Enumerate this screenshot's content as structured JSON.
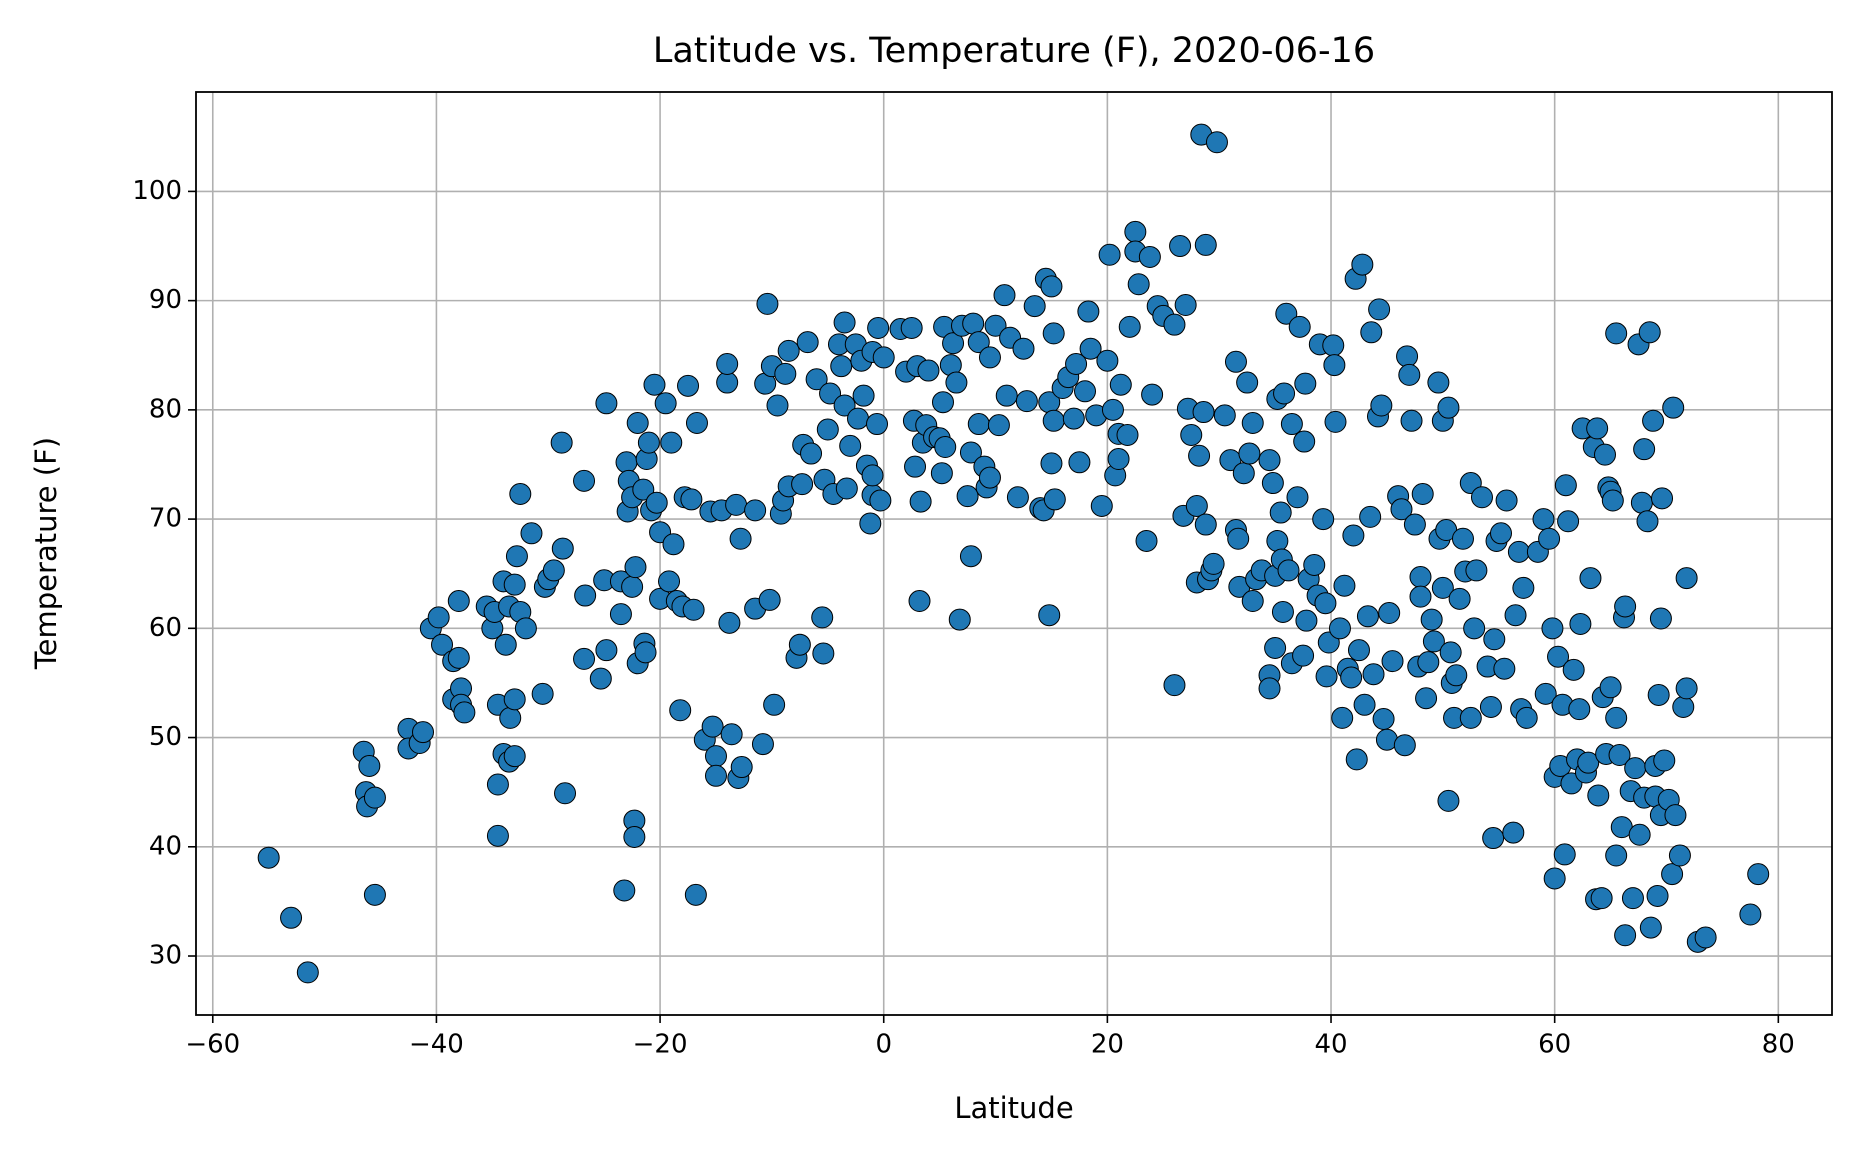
{
  "chart_data": {
    "type": "scatter",
    "title": "Latitude vs. Temperature (F), 2020-06-16",
    "x_label": "Latitude",
    "y_label": "Temperature (F)",
    "color": "#1f77b4",
    "edge_color": "#000000",
    "grid": true,
    "xlim": [
      -61.5,
      84.8
    ],
    "ylim": [
      24.6,
      109.1
    ],
    "xticks": [
      {
        "value": -60,
        "label": "−60"
      },
      {
        "value": -40,
        "label": "−40"
      },
      {
        "value": -20,
        "label": "−20"
      },
      0,
      20,
      40,
      60,
      80
    ],
    "yticks": [
      30,
      40,
      50,
      60,
      70,
      80,
      90,
      100
    ],
    "x": [
      -55,
      -53,
      -51.5,
      -46.5,
      -46.3,
      -46,
      -46.2,
      -45.5,
      -45.5,
      -42.5,
      -42.5,
      -41.5,
      -41.2,
      -40.5,
      -39.8,
      -39.5,
      -38.5,
      -38.5,
      -38,
      -38,
      -37.8,
      -37.8,
      -37.5,
      -35.5,
      -35,
      -34.8,
      -34.5,
      -34.5,
      -34.5,
      -34,
      -34,
      -33.8,
      -33.5,
      -33.5,
      -33.4,
      -33,
      -33,
      -33,
      -32.8,
      -32.5,
      -32.5,
      -32,
      -31.5,
      -30.5,
      -30.3,
      -30,
      -29.5,
      -28.8,
      -28.7,
      -28.5,
      -26.8,
      -26.8,
      -26.7,
      -25.3,
      -25,
      -24.8,
      -24.8,
      -23.5,
      -23.5,
      -23.2,
      -23,
      -22.9,
      -22.8,
      -22.5,
      -22.5,
      -22.3,
      -22.3,
      -22.2,
      -22,
      -22,
      -21.5,
      -21.4,
      -21.3,
      -21.2,
      -21,
      -20.8,
      -20.5,
      -20.3,
      -20,
      -20,
      -19.5,
      -19.2,
      -19,
      -18.8,
      -18.5,
      -18.2,
      -18,
      -17.8,
      -17.5,
      -17.2,
      -17,
      -16.8,
      -16.7,
      -16,
      -15.5,
      -15.3,
      -15,
      -15,
      -14.5,
      -14,
      -14,
      -13.8,
      -13.6,
      -13.2,
      -13,
      -12.8,
      -12.7,
      -11.5,
      -11.5,
      -10.8,
      -10.6,
      -10.4,
      -10.2,
      -10,
      -9.8,
      -9.5,
      -9.2,
      -9,
      -8.8,
      -8.5,
      -8.5,
      -7.8,
      -7.5,
      -7.3,
      -7.2,
      -6.8,
      -6.5,
      -6,
      -5.5,
      -5.4,
      -5.3,
      -5,
      -4.8,
      -4.5,
      -4,
      -3.8,
      -3.5,
      -3.5,
      -3.3,
      -3,
      -2.5,
      -2.3,
      -2,
      -1.8,
      -1.5,
      -1.2,
      -1,
      -1,
      -1,
      -0.6,
      -0.5,
      -0.3,
      0,
      1.5,
      2,
      2.5,
      2.7,
      2.8,
      3,
      3.2,
      3.3,
      3.5,
      3.8,
      4,
      4.5,
      5,
      5.2,
      5.3,
      5.4,
      5.5,
      6,
      6.2,
      6.5,
      6.8,
      7,
      7.5,
      7.8,
      7.8,
      8,
      8.5,
      8.5,
      9,
      9.2,
      9.5,
      9.5,
      10,
      10.3,
      10.8,
      11,
      11.3,
      12,
      12.5,
      12.8,
      13.5,
      14,
      14.3,
      14.5,
      14.8,
      14.8,
      15,
      15,
      15.2,
      15.2,
      15.3,
      16,
      16.5,
      17,
      17.2,
      17.5,
      18,
      18.3,
      18.5,
      19,
      19.5,
      20,
      20.2,
      20.5,
      20.7,
      21,
      21,
      21.2,
      21.8,
      22,
      22.5,
      22.5,
      22.8,
      23.5,
      23.8,
      24,
      24.5,
      25,
      26,
      26,
      26.5,
      26.8,
      27,
      27.2,
      27.5,
      28,
      28,
      28.2,
      28.4,
      28.6,
      28.8,
      28.8,
      29,
      29.3,
      29.5,
      29.8,
      30.5,
      31,
      31.5,
      31.5,
      31.7,
      31.8,
      32.2,
      32.5,
      32.7,
      33,
      33,
      33.3,
      33.8,
      34.5,
      34.5,
      34.5,
      34.8,
      35,
      35,
      35.2,
      35.2,
      35.5,
      35.6,
      35.7,
      35.8,
      36,
      36.2,
      36.5,
      36.5,
      37,
      37.2,
      37.5,
      37.6,
      37.7,
      37.8,
      38,
      38.5,
      38.8,
      39,
      39.3,
      39.5,
      39.6,
      39.8,
      40.2,
      40.3,
      40.4,
      40.8,
      41,
      41.2,
      41.5,
      41.8,
      42,
      42.2,
      42.3,
      42.5,
      42.8,
      43,
      43.3,
      43.5,
      43.6,
      43.8,
      44.2,
      44.3,
      44.5,
      44.7,
      45,
      45.2,
      45.5,
      46,
      46.3,
      46.6,
      46.8,
      47,
      47.2,
      47.5,
      47.8,
      48,
      48,
      48.2,
      48.5,
      48.7,
      49,
      49.2,
      49.6,
      49.7,
      50,
      50,
      50.3,
      50.5,
      50.5,
      50.7,
      50.8,
      51,
      51.2,
      51.5,
      51.8,
      52,
      52.5,
      52.5,
      52.8,
      53,
      53.5,
      54,
      54.3,
      54.5,
      54.6,
      54.8,
      55.2,
      55.5,
      55.7,
      56.3,
      56.5,
      56.8,
      57,
      57.2,
      57.5,
      58.5,
      59,
      59.2,
      59.5,
      59.8,
      60,
      60,
      60.3,
      60.5,
      60.7,
      60.9,
      61,
      61.2,
      61.5,
      61.7,
      62,
      62.2,
      62.3,
      62.5,
      62.8,
      63,
      63.2,
      63.5,
      63.7,
      63.8,
      63.9,
      64.2,
      64.3,
      64.5,
      64.6,
      64.8,
      65,
      65,
      65.2,
      65.5,
      65.5,
      65.5,
      65.8,
      66,
      66.2,
      66.3,
      66.3,
      66.8,
      67,
      67.2,
      67.5,
      67.6,
      67.8,
      68,
      68,
      68.3,
      68.5,
      68.6,
      68.8,
      69,
      69,
      69.2,
      69.3,
      69.5,
      69.5,
      69.6,
      69.8,
      70.2,
      70.5,
      70.6,
      70.8,
      71.2,
      71.5,
      71.8,
      71.8,
      72.8,
      73.5,
      77.5,
      78.2
    ],
    "values": [
      39,
      33.5,
      28.5,
      48.7,
      45,
      47.4,
      43.7,
      44.5,
      35.6,
      50.8,
      49,
      49.5,
      50.5,
      60,
      61,
      58.5,
      53.5,
      57,
      62.5,
      57.3,
      54.5,
      53,
      52.3,
      62,
      60,
      61.5,
      45.7,
      41,
      53,
      48.5,
      64.3,
      58.5,
      62,
      47.8,
      51.8,
      53.5,
      64,
      48.3,
      66.6,
      72.3,
      61.5,
      60,
      68.7,
      54,
      63.8,
      64.5,
      65.3,
      77,
      67.3,
      44.9,
      73.5,
      57.2,
      63,
      55.4,
      64.4,
      58,
      80.6,
      64.3,
      61.3,
      36,
      75.2,
      70.7,
      73.5,
      72,
      63.8,
      42.4,
      40.9,
      65.6,
      56.8,
      78.8,
      72.7,
      58.6,
      57.8,
      75.5,
      77,
      70.8,
      82.3,
      71.5,
      68.8,
      62.7,
      80.6,
      64.3,
      77,
      67.7,
      62.5,
      52.5,
      62,
      72,
      82.2,
      71.8,
      61.7,
      35.6,
      78.8,
      49.8,
      70.7,
      51,
      48.3,
      46.5,
      70.8,
      82.5,
      84.2,
      60.5,
      50.3,
      71.3,
      46.3,
      68.2,
      47.3,
      70.8,
      61.8,
      49.4,
      82.4,
      89.7,
      62.6,
      84,
      53,
      80.4,
      70.5,
      71.7,
      83.3,
      85.4,
      73,
      57.3,
      58.5,
      73.2,
      76.8,
      86.2,
      76,
      82.8,
      61,
      57.7,
      73.6,
      78.2,
      81.5,
      72.3,
      86,
      84,
      80.4,
      88,
      72.8,
      76.7,
      86,
      79.2,
      84.5,
      81.3,
      74.9,
      69.6,
      85.3,
      72.2,
      74,
      78.7,
      87.5,
      71.7,
      84.8,
      87.4,
      83.5,
      87.5,
      79,
      74.8,
      84,
      62.5,
      71.6,
      77,
      78.6,
      83.6,
      77.5,
      77.4,
      74.2,
      80.7,
      87.6,
      76.6,
      84.1,
      86.1,
      82.5,
      60.8,
      87.7,
      72.1,
      66.6,
      76.1,
      87.9,
      78.7,
      86.2,
      74.8,
      72.9,
      73.8,
      84.8,
      87.7,
      78.6,
      90.5,
      81.3,
      86.6,
      72,
      85.6,
      80.8,
      89.5,
      71,
      70.8,
      92,
      61.2,
      80.7,
      91.3,
      75.1,
      87,
      79,
      71.8,
      82,
      83,
      79.2,
      84.2,
      75.2,
      81.7,
      89,
      85.6,
      79.5,
      71.2,
      84.5,
      94.2,
      80,
      74,
      77.8,
      75.5,
      82.3,
      77.7,
      87.6,
      96.3,
      94.5,
      91.5,
      68,
      94,
      81.4,
      89.5,
      88.6,
      87.8,
      54.8,
      95,
      70.3,
      89.6,
      80.1,
      77.7,
      71.2,
      64.2,
      75.8,
      105.2,
      79.8,
      95.1,
      69.5,
      64.5,
      65.3,
      65.9,
      104.5,
      79.5,
      75.4,
      84.4,
      69,
      68.2,
      63.8,
      74.2,
      82.5,
      76,
      62.5,
      78.8,
      64.5,
      65.3,
      75.4,
      55.7,
      54.5,
      73.3,
      58.2,
      64.8,
      81,
      68,
      70.6,
      66.3,
      61.5,
      81.5,
      88.8,
      65.3,
      78.7,
      56.8,
      72,
      87.6,
      57.5,
      77.1,
      82.4,
      60.7,
      64.5,
      65.8,
      63,
      86,
      70,
      62.3,
      55.6,
      58.7,
      85.9,
      84.1,
      78.9,
      60,
      51.8,
      63.9,
      56.3,
      55.5,
      68.5,
      92,
      48,
      58,
      93.3,
      53,
      61.1,
      70.2,
      87.1,
      55.8,
      79.4,
      89.2,
      80.4,
      51.7,
      49.8,
      61.4,
      57,
      72.1,
      70.9,
      49.3,
      84.9,
      83.2,
      79,
      69.5,
      56.5,
      64.7,
      62.9,
      72.3,
      53.6,
      56.9,
      60.8,
      58.8,
      82.5,
      68.2,
      79,
      63.7,
      69,
      44.2,
      80.2,
      57.8,
      55,
      51.8,
      55.7,
      62.7,
      68.2,
      65.2,
      73.3,
      51.8,
      60,
      65.3,
      72,
      56.5,
      52.8,
      40.8,
      59,
      68,
      68.7,
      56.3,
      71.7,
      41.3,
      61.2,
      67,
      52.6,
      63.7,
      51.8,
      67,
      70,
      54,
      68.2,
      60,
      37.1,
      46.4,
      57.4,
      47.4,
      53,
      39.3,
      73.1,
      69.8,
      45.8,
      56.2,
      48,
      52.6,
      60.4,
      78.3,
      46.8,
      47.7,
      64.6,
      76.6,
      35.2,
      78.3,
      44.7,
      35.3,
      53.7,
      75.9,
      48.5,
      72.9,
      54.6,
      72.5,
      71.7,
      39.2,
      51.8,
      87,
      48.4,
      41.8,
      61,
      31.9,
      62,
      45.1,
      35.3,
      47.2,
      86,
      41.1,
      71.5,
      44.5,
      76.4,
      69.8,
      87.1,
      32.6,
      79,
      44.6,
      47.4,
      35.5,
      53.9,
      60.9,
      42.9,
      71.9,
      47.9,
      44.3,
      37.5,
      80.2,
      42.9,
      39.2,
      52.8,
      64.6,
      54.5,
      31.3,
      31.7,
      33.8,
      37.5
    ]
  }
}
